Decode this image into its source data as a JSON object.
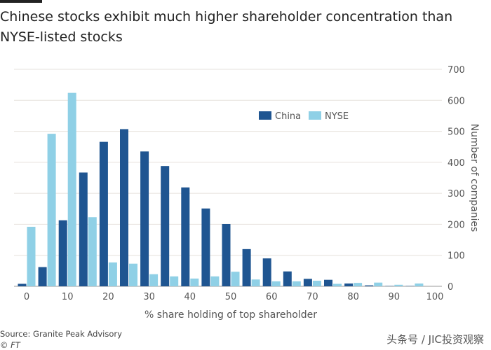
{
  "title": "Chinese stocks exhibit much higher shareholder concentration than NYSE-listed stocks",
  "source": "Source: Granite Peak Advisory",
  "credit": "© FT",
  "watermark": "头条号 / JIC投资观察",
  "chart_data": {
    "type": "bar",
    "xlabel": "% share holding of top shareholder",
    "ylabel": "Number of companies",
    "x": [
      0,
      5,
      10,
      15,
      20,
      25,
      30,
      35,
      40,
      45,
      50,
      55,
      60,
      65,
      70,
      75,
      80,
      85,
      90,
      95
    ],
    "xticks": [
      "0",
      "10",
      "20",
      "30",
      "40",
      "50",
      "60",
      "70",
      "80",
      "90",
      "100"
    ],
    "yticks": [
      "0",
      "100",
      "200",
      "300",
      "400",
      "500",
      "600",
      "700"
    ],
    "ylim": [
      0,
      700
    ],
    "xlim": [
      0,
      100
    ],
    "grid": true,
    "y_axis_side": "right",
    "legend": "top-right",
    "series": [
      {
        "name": "China",
        "color": "#1f5591",
        "values": [
          8,
          62,
          213,
          367,
          466,
          507,
          435,
          388,
          319,
          251,
          201,
          120,
          90,
          48,
          24,
          21,
          9,
          3,
          1,
          1
        ]
      },
      {
        "name": "NYSE",
        "color": "#8fd0e6",
        "values": [
          192,
          492,
          624,
          223,
          77,
          73,
          39,
          32,
          25,
          32,
          47,
          22,
          16,
          16,
          18,
          8,
          11,
          12,
          5,
          9
        ]
      }
    ]
  }
}
